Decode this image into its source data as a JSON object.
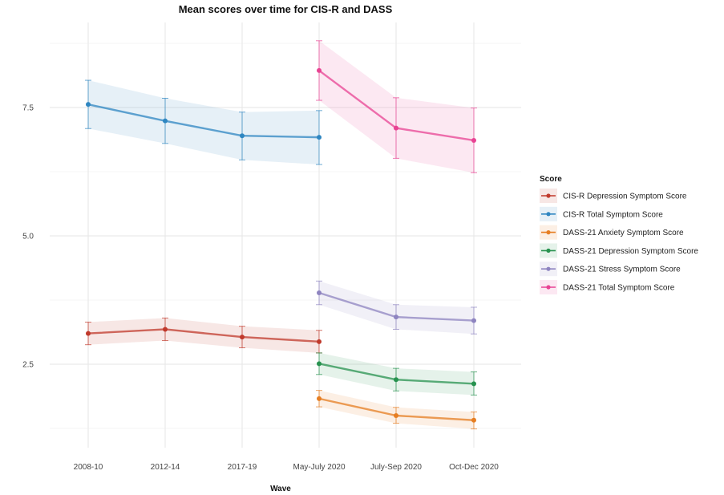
{
  "chart_data": {
    "type": "line",
    "title": "Mean scores over time for CIS-R and DASS",
    "xlabel": "Wave",
    "ylabel": "",
    "categories": [
      "2008-10",
      "2012-14",
      "2017-19",
      "May-July 2020",
      "July-Sep 2020",
      "Oct-Dec 2020"
    ],
    "y_ticks": [
      "2.5",
      "5.0",
      "7.5"
    ],
    "y_tick_values": [
      2.5,
      5.0,
      7.5
    ],
    "ylim": [
      1.2,
      9.2
    ],
    "grid": true,
    "legend": {
      "title": "Score",
      "position": "right"
    },
    "series": [
      {
        "name": "CIS-R Depression Symptom Score",
        "color": "#c0392b",
        "x": [
          "2008-10",
          "2012-14",
          "2017-19",
          "May-July 2020"
        ],
        "values": [
          3.1,
          3.18,
          3.03,
          2.94
        ],
        "lower": [
          2.88,
          2.96,
          2.82,
          2.72
        ],
        "upper": [
          3.32,
          3.4,
          3.24,
          3.16
        ]
      },
      {
        "name": "CIS-R Total Symptom Score",
        "color": "#2e86c1",
        "x": [
          "2008-10",
          "2012-14",
          "2017-19",
          "May-July 2020"
        ],
        "values": [
          7.56,
          7.24,
          6.95,
          6.92
        ],
        "lower": [
          7.09,
          6.8,
          6.48,
          6.39
        ],
        "upper": [
          8.03,
          7.68,
          7.41,
          7.44
        ]
      },
      {
        "name": "DASS-21 Anxiety Symptom Score",
        "color": "#e67e22",
        "x": [
          "May-July 2020",
          "July-Sep 2020",
          "Oct-Dec 2020"
        ],
        "values": [
          1.83,
          1.5,
          1.41
        ],
        "lower": [
          1.67,
          1.35,
          1.24
        ],
        "upper": [
          1.99,
          1.66,
          1.57
        ]
      },
      {
        "name": "DASS-21 Depression Symptom Score",
        "color": "#27924f",
        "x": [
          "May-July 2020",
          "July-Sep 2020",
          "Oct-Dec 2020"
        ],
        "values": [
          2.51,
          2.2,
          2.12
        ],
        "lower": [
          2.3,
          1.98,
          1.9
        ],
        "upper": [
          2.72,
          2.42,
          2.35
        ]
      },
      {
        "name": "DASS-21 Stress Symptom Score",
        "color": "#8e84c0",
        "x": [
          "May-July 2020",
          "July-Sep 2020",
          "Oct-Dec 2020"
        ],
        "values": [
          3.89,
          3.42,
          3.35
        ],
        "lower": [
          3.66,
          3.18,
          3.09
        ],
        "upper": [
          4.12,
          3.66,
          3.61
        ]
      },
      {
        "name": "DASS-21 Total Symptom Score",
        "color": "#e84393",
        "x": [
          "May-July 2020",
          "July-Sep 2020",
          "Oct-Dec 2020"
        ],
        "values": [
          8.22,
          7.1,
          6.86
        ],
        "lower": [
          7.64,
          6.51,
          6.23
        ],
        "upper": [
          8.8,
          7.69,
          7.49
        ]
      }
    ]
  }
}
